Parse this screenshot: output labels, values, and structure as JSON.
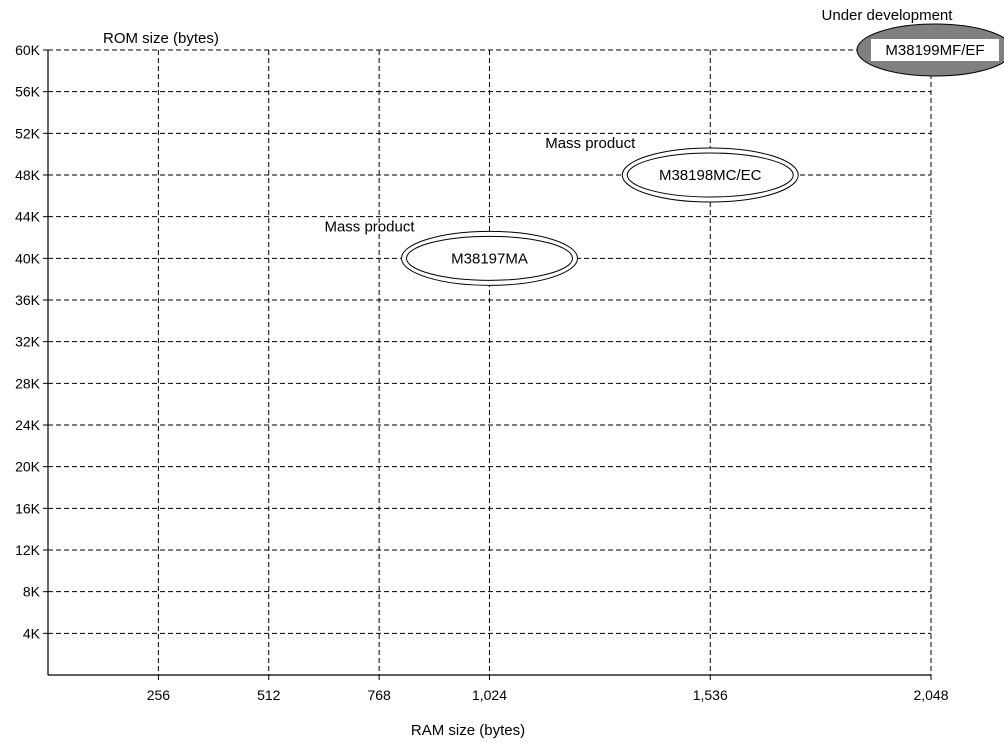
{
  "chart_data": {
    "type": "scatter",
    "title": "",
    "xlabel": "RAM size (bytes)",
    "ylabel": "ROM size (bytes)",
    "x_ticks": [
      {
        "value": 256,
        "label": "256"
      },
      {
        "value": 512,
        "label": "512"
      },
      {
        "value": 768,
        "label": "768"
      },
      {
        "value": 1024,
        "label": "1,024"
      },
      {
        "value": 1536,
        "label": "1,536"
      },
      {
        "value": 2048,
        "label": "2,048"
      }
    ],
    "y_ticks": [
      {
        "value": 4,
        "label": "4K"
      },
      {
        "value": 8,
        "label": "8K"
      },
      {
        "value": 12,
        "label": "12K"
      },
      {
        "value": 16,
        "label": "16K"
      },
      {
        "value": 20,
        "label": "20K"
      },
      {
        "value": 24,
        "label": "24K"
      },
      {
        "value": 28,
        "label": "28K"
      },
      {
        "value": 32,
        "label": "32K"
      },
      {
        "value": 36,
        "label": "36K"
      },
      {
        "value": 40,
        "label": "40K"
      },
      {
        "value": 44,
        "label": "44K"
      },
      {
        "value": 48,
        "label": "48K"
      },
      {
        "value": 52,
        "label": "52K"
      },
      {
        "value": 56,
        "label": "56K"
      },
      {
        "value": 60,
        "label": "60K"
      }
    ],
    "xlim": [
      0,
      2048
    ],
    "ylim": [
      0,
      60
    ],
    "grid": true,
    "grid_style": "dashed",
    "points": [
      {
        "name": "M38197MA",
        "ram": 1024,
        "rom_k": 40,
        "status": "Mass product",
        "style": "double-ellipse"
      },
      {
        "name": "M38198MC/EC",
        "ram": 1536,
        "rom_k": 48,
        "status": "Mass product",
        "style": "double-ellipse"
      },
      {
        "name": "M38199MF/EF",
        "ram": 2048,
        "rom_k": 60,
        "status": "Under development",
        "style": "filled-ellipse"
      }
    ],
    "colors": {
      "axis": "#000000",
      "grid": "#000000",
      "dev_fill": "#808080",
      "dev_label_bg": "#ffffff"
    }
  }
}
